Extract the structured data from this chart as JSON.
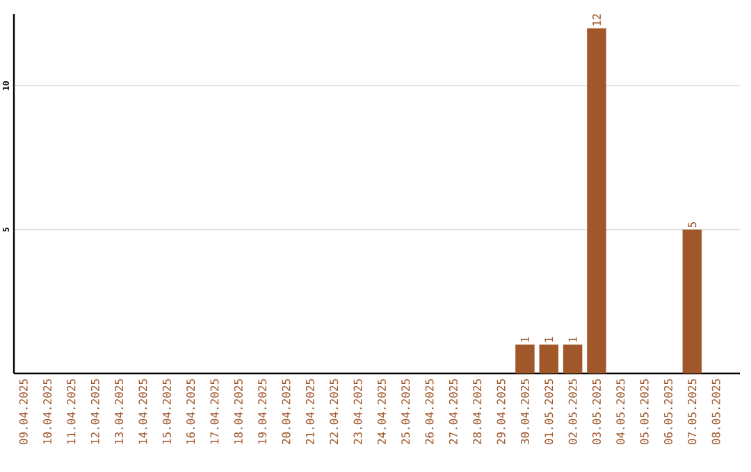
{
  "chart_data": {
    "type": "bar",
    "categories": [
      "09.04.2025",
      "10.04.2025",
      "11.04.2025",
      "12.04.2025",
      "13.04.2025",
      "14.04.2025",
      "15.04.2025",
      "16.04.2025",
      "17.04.2025",
      "18.04.2025",
      "19.04.2025",
      "20.04.2025",
      "21.04.2025",
      "22.04.2025",
      "23.04.2025",
      "24.04.2025",
      "25.04.2025",
      "26.04.2025",
      "27.04.2025",
      "28.04.2025",
      "29.04.2025",
      "30.04.2025",
      "01.05.2025",
      "02.05.2025",
      "03.05.2025",
      "04.05.2025",
      "05.05.2025",
      "06.05.2025",
      "07.05.2025",
      "08.05.2025"
    ],
    "values": [
      0,
      0,
      0,
      0,
      0,
      0,
      0,
      0,
      0,
      0,
      0,
      0,
      0,
      0,
      0,
      0,
      0,
      0,
      0,
      0,
      0,
      1,
      1,
      1,
      12,
      0,
      0,
      0,
      5,
      0
    ],
    "value_labels": [
      null,
      null,
      null,
      null,
      null,
      null,
      null,
      null,
      null,
      null,
      null,
      null,
      null,
      null,
      null,
      null,
      null,
      null,
      null,
      null,
      null,
      "1",
      "1",
      "1",
      "12",
      null,
      null,
      null,
      "5",
      null
    ],
    "color": "#a0572a",
    "ylim": [
      0,
      12.5
    ],
    "yticks": [
      5,
      10
    ],
    "grid": "y"
  }
}
